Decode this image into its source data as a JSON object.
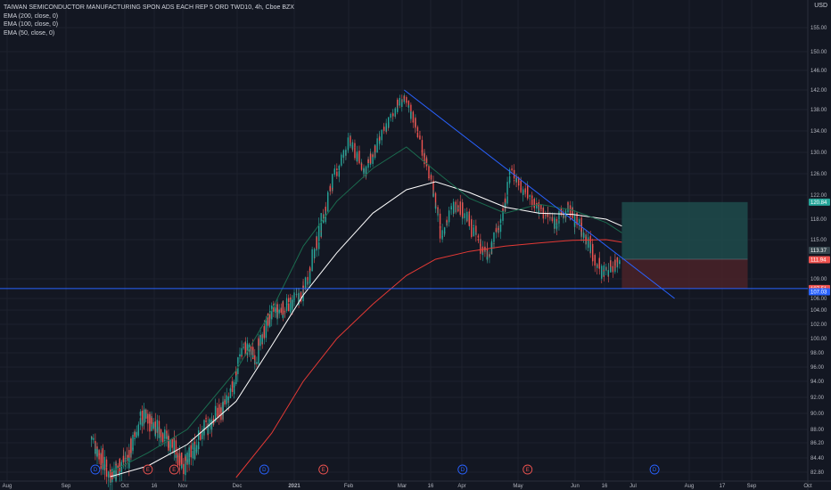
{
  "legend": {
    "title": "TAIWAN SEMICONDUCTOR MANUFACTURING SPON ADS EACH REP 5 ORD TWD10, 4h, Cboe BZX",
    "ema200": "EMA (200, close, 0)",
    "ema100": "EMA (100, close, 0)",
    "ema50": "EMA (50, close, 0)"
  },
  "currency": "USD",
  "colors": {
    "background": "#131722",
    "up": "#26a69a",
    "down": "#ef5350",
    "trendline": "#2962ff",
    "ema200": "#e53935",
    "ema100": "#ffffff",
    "ema50": "#1b6b4f",
    "target_zone": "#1e4b4b",
    "stop_zone": "#4a2228",
    "support": "#2962ff"
  },
  "chart_data": {
    "type": "candlestick",
    "ylim": [
      82.0,
      156.0
    ],
    "y_ticks": [
      "155.00",
      "150.00",
      "146.00",
      "142.00",
      "138.00",
      "134.00",
      "130.00",
      "126.00",
      "122.00",
      "118.00",
      "115.00",
      "109.00",
      "106.00",
      "104.00",
      "102.00",
      "100.00",
      "98.00",
      "96.00",
      "94.00",
      "92.00",
      "90.00",
      "88.00",
      "86.20",
      "84.40",
      "82.80"
    ],
    "x_ticks": [
      "Aug",
      "Sep",
      "Oct",
      "16",
      "Nov",
      "Dec",
      "2021",
      "Feb",
      "Mar",
      "16",
      "Apr",
      "May",
      "Jun",
      "16",
      "Jul",
      "Aug",
      "17",
      "Sep",
      "Oct"
    ],
    "price_tags": [
      {
        "label": "120.84",
        "value": 120.84,
        "color": "#26a69a"
      },
      {
        "label": "113.37",
        "value": 113.37,
        "color": "#37474f"
      },
      {
        "label": "111.94",
        "value": 111.94,
        "color": "#ef5350"
      },
      {
        "label": "107.51",
        "value": 107.51,
        "color": "#ef5350"
      },
      {
        "label": "107.03",
        "value": 107.03,
        "color": "#2962ff"
      }
    ],
    "events": [
      {
        "label": "D",
        "color": "#2962ff",
        "date": "2020-09-17"
      },
      {
        "label": "E",
        "color": "#ef5350",
        "date": "2020-10-15"
      },
      {
        "label": "E",
        "color": "#ef5350",
        "date": "2020-10-29"
      },
      {
        "label": "D",
        "color": "#2962ff",
        "date": "2020-12-16"
      },
      {
        "label": "E",
        "color": "#ef5350",
        "date": "2021-01-14"
      },
      {
        "label": "D",
        "color": "#2962ff",
        "date": "2021-03-17"
      },
      {
        "label": "E",
        "color": "#ef5350",
        "date": "2021-04-15"
      },
      {
        "label": "D",
        "color": "#2962ff",
        "date": "2021-06-16"
      }
    ],
    "trendline": [
      [
        "2021-02-19",
        142.0
      ],
      [
        "2021-06-30",
        106.0
      ]
    ],
    "support_level": 107.51,
    "position": {
      "start": "2021-05-27",
      "end": "2021-08-20",
      "entry": 112.0,
      "target": 120.84,
      "stop": 107.51
    },
    "ema200": [
      [
        "2020-12-01",
        82.2
      ],
      [
        "2020-12-20",
        87.5
      ],
      [
        "2021-01-05",
        94.0
      ],
      [
        "2021-01-20",
        100.0
      ],
      [
        "2021-02-05",
        105.0
      ],
      [
        "2021-02-20",
        109.5
      ],
      [
        "2021-03-05",
        112.0
      ],
      [
        "2021-03-20",
        113.2
      ],
      [
        "2021-04-05",
        114.0
      ],
      [
        "2021-04-20",
        114.5
      ],
      [
        "2021-05-05",
        114.9
      ],
      [
        "2021-05-20",
        115.0
      ],
      [
        "2021-05-27",
        114.6
      ]
    ],
    "ema100": [
      [
        "2020-09-25",
        82.3
      ],
      [
        "2020-10-15",
        83.5
      ],
      [
        "2020-11-05",
        86.0
      ],
      [
        "2020-12-01",
        91.5
      ],
      [
        "2020-12-20",
        99.0
      ],
      [
        "2021-01-05",
        106.5
      ],
      [
        "2021-01-20",
        113.0
      ],
      [
        "2021-02-05",
        119.0
      ],
      [
        "2021-02-20",
        123.0
      ],
      [
        "2021-03-05",
        124.5
      ],
      [
        "2021-03-20",
        122.5
      ],
      [
        "2021-04-05",
        120.0
      ],
      [
        "2021-04-20",
        119.0
      ],
      [
        "2021-05-05",
        118.8
      ],
      [
        "2021-05-20",
        118.0
      ],
      [
        "2021-05-27",
        117.0
      ]
    ],
    "ema50": [
      [
        "2020-09-25",
        82.8
      ],
      [
        "2020-10-15",
        85.0
      ],
      [
        "2020-11-05",
        88.0
      ],
      [
        "2020-12-01",
        95.5
      ],
      [
        "2020-12-20",
        104.0
      ],
      [
        "2021-01-05",
        114.0
      ],
      [
        "2021-01-20",
        121.0
      ],
      [
        "2021-02-05",
        127.0
      ],
      [
        "2021-02-20",
        131.0
      ],
      [
        "2021-03-05",
        126.5
      ],
      [
        "2021-03-20",
        121.5
      ],
      [
        "2021-04-05",
        119.0
      ],
      [
        "2021-04-20",
        120.5
      ],
      [
        "2021-05-05",
        119.5
      ],
      [
        "2021-05-20",
        117.5
      ],
      [
        "2021-05-27",
        116.0
      ]
    ],
    "close": [
      [
        "2020-09-15",
        87.0
      ],
      [
        "2020-09-25",
        82.5
      ],
      [
        "2020-10-05",
        84.5
      ],
      [
        "2020-10-12",
        89.5
      ],
      [
        "2020-10-20",
        88.5
      ],
      [
        "2020-10-28",
        86.0
      ],
      [
        "2020-11-05",
        83.5
      ],
      [
        "2020-11-12",
        87.0
      ],
      [
        "2020-11-20",
        89.5
      ],
      [
        "2020-11-28",
        91.5
      ],
      [
        "2020-12-05",
        99.0
      ],
      [
        "2020-12-12",
        97.5
      ],
      [
        "2020-12-20",
        103.5
      ],
      [
        "2020-12-28",
        104.5
      ],
      [
        "2021-01-05",
        106.5
      ],
      [
        "2021-01-12",
        115.0
      ],
      [
        "2021-01-19",
        125.0
      ],
      [
        "2021-01-26",
        132.0
      ],
      [
        "2021-02-02",
        126.5
      ],
      [
        "2021-02-09",
        132.5
      ],
      [
        "2021-02-16",
        138.5
      ],
      [
        "2021-02-19",
        140.0
      ],
      [
        "2021-02-24",
        136.0
      ],
      [
        "2021-03-01",
        128.5
      ],
      [
        "2021-03-08",
        116.0
      ],
      [
        "2021-03-15",
        121.0
      ],
      [
        "2021-03-22",
        116.5
      ],
      [
        "2021-03-29",
        112.0
      ],
      [
        "2021-04-05",
        120.0
      ],
      [
        "2021-04-08",
        126.5
      ],
      [
        "2021-04-14",
        123.0
      ],
      [
        "2021-04-20",
        120.0
      ],
      [
        "2021-04-27",
        117.5
      ],
      [
        "2021-05-04",
        119.5
      ],
      [
        "2021-05-11",
        115.5
      ],
      [
        "2021-05-14",
        113.5
      ],
      [
        "2021-05-18",
        110.0
      ],
      [
        "2021-05-21",
        110.5
      ],
      [
        "2021-05-25",
        111.5
      ],
      [
        "2021-05-27",
        112.5
      ]
    ]
  }
}
